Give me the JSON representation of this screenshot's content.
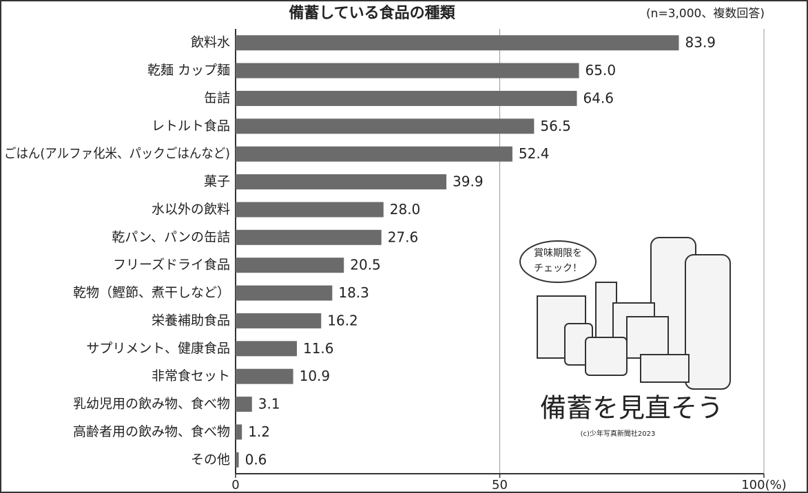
{
  "chart_data": {
    "type": "bar",
    "orientation": "horizontal",
    "title": "備蓄している食品の種類",
    "subtitle": "(n=3,000、複数回答)",
    "categories": [
      "飲料水",
      "乾麺 カップ麺",
      "缶詰",
      "レトルト食品",
      "ごはん(アルファ化米、パックごはんなど)",
      "菓子",
      "水以外の飲料",
      "乾パン、パンの缶詰",
      "フリーズドライ食品",
      "乾物（鰹節、煮干しなど）",
      "栄養補助食品",
      "サプリメント、健康食品",
      "非常食セット",
      "乳幼児用の飲み物、食べ物",
      "高齢者用の飲み物、食べ物",
      "その他"
    ],
    "values": [
      83.9,
      65.0,
      64.6,
      56.5,
      52.4,
      39.9,
      28.0,
      27.6,
      20.5,
      18.3,
      16.2,
      11.6,
      10.9,
      3.1,
      1.2,
      0.6
    ],
    "value_labels": [
      "83.9",
      "65.0",
      "64.6",
      "56.5",
      "52.4",
      "39.9",
      "28.0",
      "27.6",
      "20.5",
      "18.3",
      "16.2",
      "11.6",
      "10.9",
      "3.1",
      "1.2",
      "0.6"
    ],
    "color": "#6b6b6b",
    "xlim": [
      0,
      100
    ],
    "xticks": [
      0,
      50,
      {
        "value": 100,
        "label": "100(%)"
      }
    ],
    "grid": true,
    "annotations": [
      "賞味期限を",
      "チェック！",
      "備蓄を見直そう",
      "(c)少年写真新聞社2023"
    ]
  }
}
